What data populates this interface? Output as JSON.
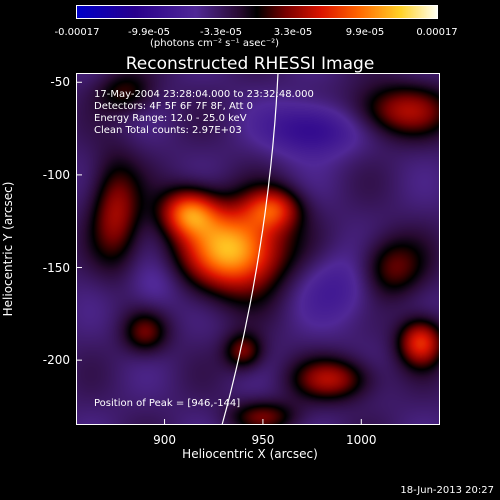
{
  "chart_data": {
    "type": "heatmap",
    "title": "Reconstructed RHESSI Image",
    "xlabel": "Heliocentric X (arcsec)",
    "ylabel": "Heliocentric Y (arcsec)",
    "xlim": [
      855,
      1040
    ],
    "ylim": [
      -235,
      -45
    ],
    "xticks": [
      "900",
      "950",
      "1000"
    ],
    "yticks": [
      "-50",
      "-100",
      "-150",
      "-200"
    ],
    "colorbar": {
      "ticks": [
        "-0.00017",
        "-9.9e-05",
        "-3.3e-05",
        "3.3e-05",
        "9.9e-05",
        "0.00017"
      ],
      "unit": "(photons cm⁻² s⁻¹ asec⁻²)",
      "range": [
        -0.00017,
        0.00017
      ]
    },
    "annotations": {
      "time": "17-May-2004 23:28:04.000 to 23:32:48.000",
      "detectors": "Detectors: 4F 5F 6F 7F 8F, Att 0",
      "energy": "Energy Range: 12.0 - 25.0 keV",
      "method": "Clean    Total counts: 2.97E+03",
      "peak": "Position of Peak = [946,-144]"
    },
    "peak": [
      946,
      -144
    ],
    "blobs": [
      {
        "x": 935,
        "y": -140,
        "sx": 18,
        "sy": 16,
        "v": 0.00017
      },
      {
        "x": 912,
        "y": -120,
        "sx": 10,
        "sy": 9,
        "v": 0.00012
      },
      {
        "x": 955,
        "y": -118,
        "sx": 10,
        "sy": 8,
        "v": 9e-05
      },
      {
        "x": 875,
        "y": -120,
        "sx": 9,
        "sy": 20,
        "v": 8e-05
      },
      {
        "x": 1020,
        "y": -65,
        "sx": 18,
        "sy": 10,
        "v": 8e-05
      },
      {
        "x": 1015,
        "y": -150,
        "sx": 12,
        "sy": 12,
        "v": 7e-05
      },
      {
        "x": 1030,
        "y": -190,
        "sx": 8,
        "sy": 9,
        "v": 0.00011
      },
      {
        "x": 985,
        "y": -210,
        "sx": 14,
        "sy": 8,
        "v": 8e-05
      },
      {
        "x": 940,
        "y": -195,
        "sx": 7,
        "sy": 7,
        "v": 7e-05
      },
      {
        "x": 890,
        "y": -185,
        "sx": 8,
        "sy": 8,
        "v": 6e-05
      },
      {
        "x": 950,
        "y": -230,
        "sx": 12,
        "sy": 6,
        "v": 6e-05
      },
      {
        "x": 880,
        "y": -55,
        "sx": 10,
        "sy": 8,
        "v": 5e-05
      },
      {
        "x": 975,
        "y": -75,
        "sx": 16,
        "sy": 10,
        "v": -7e-05
      },
      {
        "x": 990,
        "y": -160,
        "sx": 16,
        "sy": 14,
        "v": -4e-05
      },
      {
        "x": 895,
        "y": -160,
        "sx": 10,
        "sy": 10,
        "v": -3e-05
      }
    ]
  },
  "footer": {
    "stamp": "18-Jun-2013 20:27"
  }
}
